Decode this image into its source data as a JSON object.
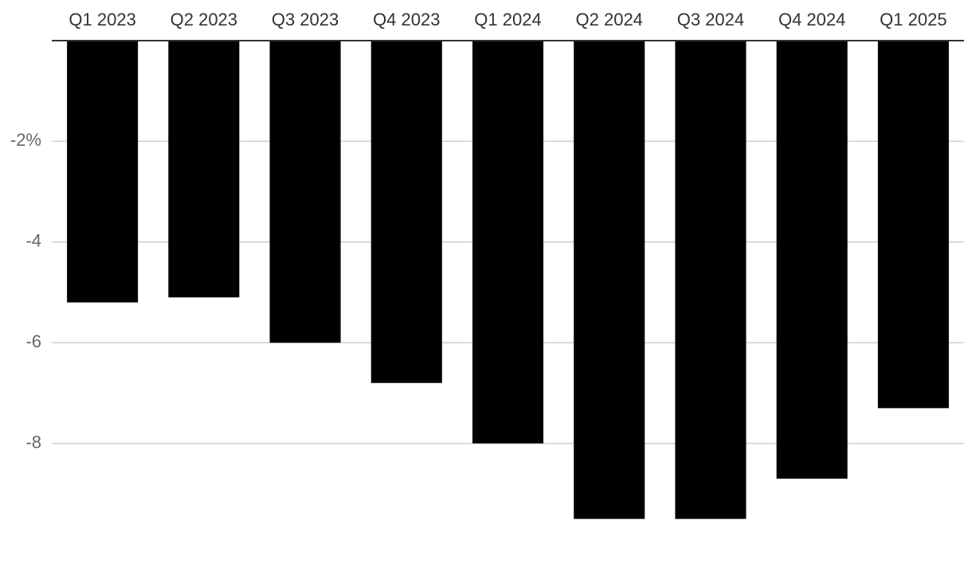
{
  "chart_data": {
    "type": "bar",
    "categories": [
      "Q1 2023",
      "Q2 2023",
      "Q3 2023",
      "Q4 2023",
      "Q1 2024",
      "Q2 2024",
      "Q3 2024",
      "Q4 2024",
      "Q1 2025"
    ],
    "values": [
      -5.2,
      -5.1,
      -6.0,
      -6.8,
      -8.0,
      -9.5,
      -9.5,
      -8.7,
      -7.3
    ],
    "color": "#000000",
    "ylim": [
      -10,
      0
    ],
    "yticks": [
      {
        "value": -2,
        "label": "-2%"
      },
      -4,
      -6,
      -8
    ],
    "grid": true
  }
}
